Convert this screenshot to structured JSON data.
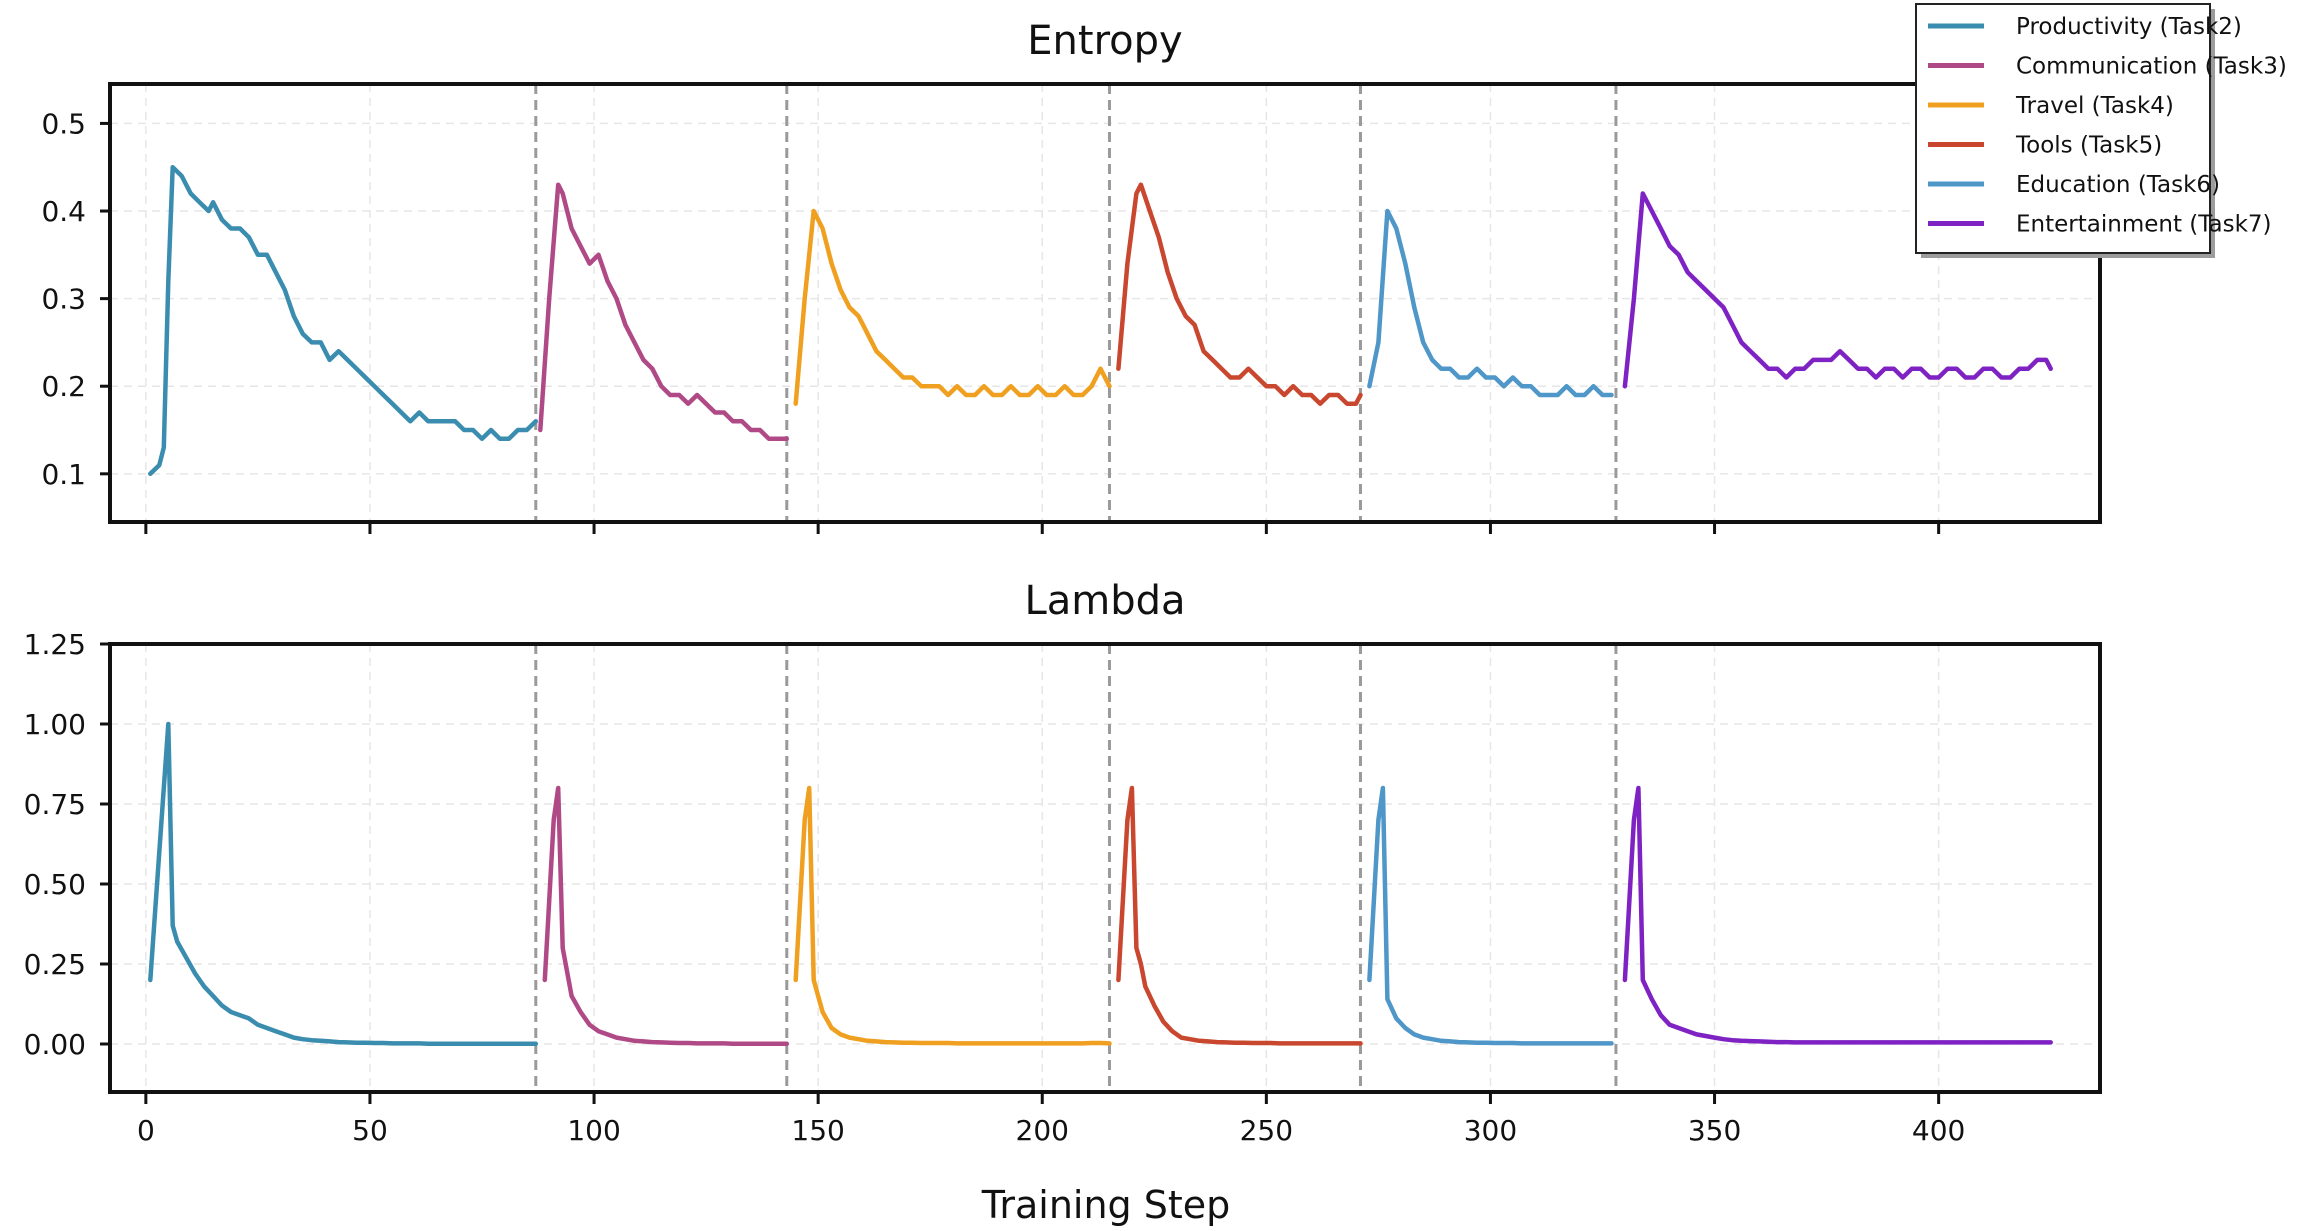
{
  "chart_data": [
    {
      "type": "line",
      "title": "Entropy",
      "xlabel": "",
      "ylabel": "",
      "xlim": [
        -8,
        436
      ],
      "ylim": [
        0.045,
        0.545
      ],
      "yticks": [
        "0.1",
        "0.2",
        "0.3",
        "0.4",
        "0.5"
      ],
      "xticks": [
        0,
        50,
        100,
        150,
        200,
        250,
        300,
        350,
        400
      ],
      "grid": true,
      "task_boundaries": [
        87,
        143,
        215,
        271,
        328
      ],
      "series": [
        {
          "name": "Productivity (Task2)",
          "color": "#3b8db0",
          "x": [
            1,
            3,
            4,
            5,
            6,
            8,
            10,
            12,
            14,
            15,
            17,
            19,
            21,
            23,
            25,
            27,
            29,
            31,
            33,
            35,
            37,
            39,
            41,
            43,
            45,
            47,
            49,
            51,
            53,
            55,
            57,
            59,
            61,
            63,
            65,
            67,
            69,
            71,
            73,
            75,
            77,
            79,
            81,
            83,
            85,
            87
          ],
          "values": [
            0.1,
            0.11,
            0.13,
            0.32,
            0.45,
            0.44,
            0.42,
            0.41,
            0.4,
            0.41,
            0.39,
            0.38,
            0.38,
            0.37,
            0.35,
            0.35,
            0.33,
            0.31,
            0.28,
            0.26,
            0.25,
            0.25,
            0.23,
            0.24,
            0.23,
            0.22,
            0.21,
            0.2,
            0.19,
            0.18,
            0.17,
            0.16,
            0.17,
            0.16,
            0.16,
            0.16,
            0.16,
            0.15,
            0.15,
            0.14,
            0.15,
            0.14,
            0.14,
            0.15,
            0.15,
            0.16
          ]
        },
        {
          "name": "Communication (Task3)",
          "color": "#b04a86",
          "x": [
            88,
            90,
            92,
            93,
            95,
            97,
            99,
            101,
            103,
            105,
            107,
            109,
            111,
            113,
            115,
            117,
            119,
            121,
            123,
            125,
            127,
            129,
            131,
            133,
            135,
            137,
            139,
            141,
            143
          ],
          "values": [
            0.15,
            0.3,
            0.43,
            0.42,
            0.38,
            0.36,
            0.34,
            0.35,
            0.32,
            0.3,
            0.27,
            0.25,
            0.23,
            0.22,
            0.2,
            0.19,
            0.19,
            0.18,
            0.19,
            0.18,
            0.17,
            0.17,
            0.16,
            0.16,
            0.15,
            0.15,
            0.14,
            0.14,
            0.14
          ]
        },
        {
          "name": "Travel (Task4)",
          "color": "#f0a020",
          "x": [
            145,
            147,
            149,
            151,
            153,
            155,
            157,
            159,
            161,
            163,
            165,
            167,
            169,
            171,
            173,
            175,
            177,
            179,
            181,
            183,
            185,
            187,
            189,
            191,
            193,
            195,
            197,
            199,
            201,
            203,
            205,
            207,
            209,
            211,
            213,
            215
          ],
          "values": [
            0.18,
            0.3,
            0.4,
            0.38,
            0.34,
            0.31,
            0.29,
            0.28,
            0.26,
            0.24,
            0.23,
            0.22,
            0.21,
            0.21,
            0.2,
            0.2,
            0.2,
            0.19,
            0.2,
            0.19,
            0.19,
            0.2,
            0.19,
            0.19,
            0.2,
            0.19,
            0.19,
            0.2,
            0.19,
            0.19,
            0.2,
            0.19,
            0.19,
            0.2,
            0.22,
            0.2
          ]
        },
        {
          "name": "Tools (Task5)",
          "color": "#c9472f",
          "x": [
            217,
            219,
            221,
            222,
            224,
            226,
            228,
            230,
            232,
            234,
            236,
            238,
            240,
            242,
            244,
            246,
            248,
            250,
            252,
            254,
            256,
            258,
            260,
            262,
            264,
            266,
            268,
            270,
            271
          ],
          "values": [
            0.22,
            0.34,
            0.42,
            0.43,
            0.4,
            0.37,
            0.33,
            0.3,
            0.28,
            0.27,
            0.24,
            0.23,
            0.22,
            0.21,
            0.21,
            0.22,
            0.21,
            0.2,
            0.2,
            0.19,
            0.2,
            0.19,
            0.19,
            0.18,
            0.19,
            0.19,
            0.18,
            0.18,
            0.19
          ]
        },
        {
          "name": "Education (Task6)",
          "color": "#4f97c8",
          "x": [
            273,
            275,
            277,
            279,
            281,
            283,
            285,
            287,
            289,
            291,
            293,
            295,
            297,
            299,
            301,
            303,
            305,
            307,
            309,
            311,
            313,
            315,
            317,
            319,
            321,
            323,
            325,
            327
          ],
          "values": [
            0.2,
            0.25,
            0.4,
            0.38,
            0.34,
            0.29,
            0.25,
            0.23,
            0.22,
            0.22,
            0.21,
            0.21,
            0.22,
            0.21,
            0.21,
            0.2,
            0.21,
            0.2,
            0.2,
            0.19,
            0.19,
            0.19,
            0.2,
            0.19,
            0.19,
            0.2,
            0.19,
            0.19
          ]
        },
        {
          "name": "Entertainment (Task7)",
          "color": "#7f22c4",
          "x": [
            330,
            332,
            334,
            336,
            338,
            340,
            342,
            344,
            346,
            348,
            350,
            352,
            354,
            356,
            358,
            360,
            362,
            364,
            366,
            368,
            370,
            372,
            374,
            376,
            378,
            380,
            382,
            384,
            386,
            388,
            390,
            392,
            394,
            396,
            398,
            400,
            402,
            404,
            406,
            408,
            410,
            412,
            414,
            416,
            418,
            420,
            422,
            424,
            425
          ],
          "values": [
            0.2,
            0.3,
            0.42,
            0.4,
            0.38,
            0.36,
            0.35,
            0.33,
            0.32,
            0.31,
            0.3,
            0.29,
            0.27,
            0.25,
            0.24,
            0.23,
            0.22,
            0.22,
            0.21,
            0.22,
            0.22,
            0.23,
            0.23,
            0.23,
            0.24,
            0.23,
            0.22,
            0.22,
            0.21,
            0.22,
            0.22,
            0.21,
            0.22,
            0.22,
            0.21,
            0.21,
            0.22,
            0.22,
            0.21,
            0.21,
            0.22,
            0.22,
            0.21,
            0.21,
            0.22,
            0.22,
            0.23,
            0.23,
            0.22
          ]
        }
      ]
    },
    {
      "type": "line",
      "title": "Lambda",
      "xlabel": "Training Step",
      "ylabel": "",
      "xlim": [
        -8,
        436
      ],
      "ylim": [
        -0.15,
        1.25
      ],
      "yticks": [
        "0.00",
        "0.25",
        "0.50",
        "0.75",
        "1.00",
        "1.25"
      ],
      "xticks": [
        0,
        50,
        100,
        150,
        200,
        250,
        300,
        350,
        400
      ],
      "grid": true,
      "task_boundaries": [
        87,
        143,
        215,
        271,
        328
      ],
      "series": [
        {
          "name": "Productivity (Task2)",
          "color": "#3b8db0",
          "x": [
            1,
            5,
            6,
            7,
            9,
            11,
            13,
            15,
            17,
            19,
            21,
            23,
            25,
            27,
            29,
            31,
            33,
            35,
            37,
            39,
            41,
            43,
            45,
            47,
            49,
            51,
            53,
            55,
            57,
            59,
            61,
            63,
            65,
            67,
            69,
            71,
            73,
            75,
            77,
            79,
            81,
            83,
            85,
            87
          ],
          "values": [
            0.2,
            1.0,
            0.37,
            0.32,
            0.27,
            0.22,
            0.18,
            0.15,
            0.12,
            0.1,
            0.09,
            0.08,
            0.06,
            0.05,
            0.04,
            0.03,
            0.02,
            0.015,
            0.012,
            0.01,
            0.008,
            0.006,
            0.005,
            0.004,
            0.004,
            0.003,
            0.003,
            0.002,
            0.002,
            0.002,
            0.002,
            0.001,
            0.001,
            0.001,
            0.001,
            0.001,
            0.001,
            0.001,
            0.001,
            0.001,
            0.001,
            0.001,
            0.001,
            0.001
          ]
        },
        {
          "name": "Communication (Task3)",
          "color": "#b04a86",
          "x": [
            89,
            91,
            92,
            93,
            95,
            97,
            99,
            101,
            103,
            105,
            107,
            109,
            111,
            113,
            115,
            117,
            119,
            121,
            123,
            125,
            127,
            129,
            131,
            133,
            135,
            137,
            139,
            141,
            143
          ],
          "values": [
            0.2,
            0.7,
            0.8,
            0.3,
            0.15,
            0.1,
            0.06,
            0.04,
            0.03,
            0.02,
            0.015,
            0.01,
            0.008,
            0.006,
            0.005,
            0.004,
            0.003,
            0.003,
            0.002,
            0.002,
            0.002,
            0.002,
            0.001,
            0.001,
            0.001,
            0.001,
            0.001,
            0.001,
            0.001
          ]
        },
        {
          "name": "Travel (Task4)",
          "color": "#f0a020",
          "x": [
            145,
            147,
            148,
            149,
            151,
            153,
            155,
            157,
            159,
            161,
            163,
            165,
            167,
            169,
            171,
            173,
            175,
            177,
            179,
            181,
            183,
            185,
            187,
            189,
            191,
            193,
            195,
            197,
            199,
            201,
            203,
            205,
            207,
            209,
            211,
            213,
            215
          ],
          "values": [
            0.2,
            0.7,
            0.8,
            0.2,
            0.1,
            0.05,
            0.03,
            0.02,
            0.015,
            0.01,
            0.008,
            0.006,
            0.005,
            0.004,
            0.004,
            0.003,
            0.003,
            0.003,
            0.003,
            0.002,
            0.002,
            0.002,
            0.002,
            0.002,
            0.002,
            0.002,
            0.002,
            0.002,
            0.002,
            0.002,
            0.002,
            0.002,
            0.002,
            0.002,
            0.003,
            0.003,
            0.002
          ]
        },
        {
          "name": "Tools (Task5)",
          "color": "#c9472f",
          "x": [
            217,
            219,
            220,
            221,
            222,
            223,
            225,
            227,
            229,
            231,
            233,
            235,
            237,
            239,
            241,
            243,
            245,
            247,
            249,
            251,
            253,
            255,
            257,
            259,
            261,
            263,
            265,
            267,
            269,
            271
          ],
          "values": [
            0.2,
            0.7,
            0.8,
            0.3,
            0.25,
            0.18,
            0.12,
            0.07,
            0.04,
            0.02,
            0.015,
            0.01,
            0.008,
            0.006,
            0.005,
            0.004,
            0.004,
            0.003,
            0.003,
            0.003,
            0.002,
            0.002,
            0.002,
            0.002,
            0.002,
            0.002,
            0.002,
            0.002,
            0.002,
            0.002
          ]
        },
        {
          "name": "Education (Task6)",
          "color": "#4f97c8",
          "x": [
            273,
            275,
            276,
            277,
            279,
            281,
            283,
            285,
            287,
            289,
            291,
            293,
            295,
            297,
            299,
            301,
            303,
            305,
            307,
            309,
            311,
            313,
            315,
            317,
            319,
            321,
            323,
            325,
            327
          ],
          "values": [
            0.2,
            0.7,
            0.8,
            0.14,
            0.08,
            0.05,
            0.03,
            0.02,
            0.015,
            0.01,
            0.008,
            0.006,
            0.005,
            0.004,
            0.004,
            0.003,
            0.003,
            0.003,
            0.002,
            0.002,
            0.002,
            0.002,
            0.002,
            0.002,
            0.002,
            0.002,
            0.002,
            0.002,
            0.002
          ]
        },
        {
          "name": "Entertainment (Task7)",
          "color": "#7f22c4",
          "x": [
            330,
            332,
            333,
            334,
            336,
            338,
            340,
            342,
            344,
            346,
            348,
            350,
            352,
            354,
            356,
            358,
            360,
            362,
            364,
            366,
            368,
            370,
            372,
            374,
            376,
            378,
            380,
            382,
            384,
            386,
            388,
            390,
            392,
            394,
            396,
            398,
            400,
            402,
            404,
            406,
            408,
            410,
            412,
            414,
            416,
            418,
            420,
            422,
            424,
            425
          ],
          "values": [
            0.2,
            0.7,
            0.8,
            0.2,
            0.14,
            0.09,
            0.06,
            0.05,
            0.04,
            0.03,
            0.025,
            0.02,
            0.015,
            0.012,
            0.01,
            0.009,
            0.008,
            0.007,
            0.006,
            0.006,
            0.005,
            0.005,
            0.005,
            0.005,
            0.005,
            0.005,
            0.005,
            0.005,
            0.005,
            0.005,
            0.005,
            0.005,
            0.005,
            0.005,
            0.005,
            0.005,
            0.005,
            0.005,
            0.005,
            0.005,
            0.005,
            0.005,
            0.005,
            0.005,
            0.005,
            0.005,
            0.005,
            0.005,
            0.005,
            0.005
          ]
        }
      ]
    }
  ]
}
